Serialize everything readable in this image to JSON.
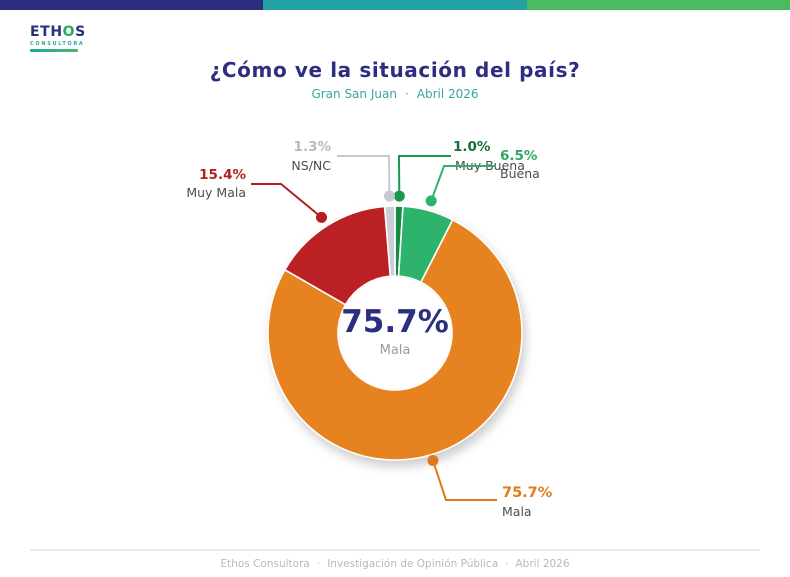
{
  "header": {
    "bar_colors": [
      "#2b2e7d",
      "#23a2a1",
      "#4cba62"
    ],
    "logo": {
      "name_pre": "ETH",
      "name_o": "O",
      "name_post": "S",
      "subtitle": "CONSULTORA",
      "accent_color": "#27a85f"
    },
    "title": "¿Cómo ve la situación del país?",
    "subtitle_location": "Gran San Juan",
    "subtitle_separator": "·",
    "subtitle_date": "Abril 2026"
  },
  "chart_data": {
    "type": "pie",
    "variant": "donut",
    "title": "¿Cómo ve la situación del país?",
    "unit": "%",
    "direction": "clockwise",
    "start_angle": "top",
    "center_value": "75.7%",
    "center_label": "Mala",
    "slices": [
      {
        "label": "Muy Buena",
        "value": 1.0,
        "pct": "1.0%",
        "color": "#178a44",
        "accent": "#1b9850",
        "pct_color": "#156d36"
      },
      {
        "label": "Buena",
        "value": 6.5,
        "pct": "6.5%",
        "color": "#2db36c",
        "accent": "#2db36c",
        "pct_color": "#2fa763"
      },
      {
        "label": "Mala",
        "value": 75.7,
        "pct": "75.7%",
        "color": "#e6821f",
        "accent": "#dd7a1a",
        "pct_color": "#df7b19"
      },
      {
        "label": "Muy Mala",
        "value": 15.4,
        "pct": "15.4%",
        "color": "#bb2025",
        "accent": "#b21e24",
        "pct_color": "#b21e24"
      },
      {
        "label": "NS/NC",
        "value": 1.3,
        "pct": "1.3%",
        "color": "#cbced6",
        "accent": "#c6c9d1",
        "pct_color": "#b7bac1"
      }
    ]
  },
  "footer": {
    "company": "Ethos Consultora",
    "separator": "·",
    "label": "Investigación de Opinión Pública",
    "date": "Abril 2026"
  }
}
